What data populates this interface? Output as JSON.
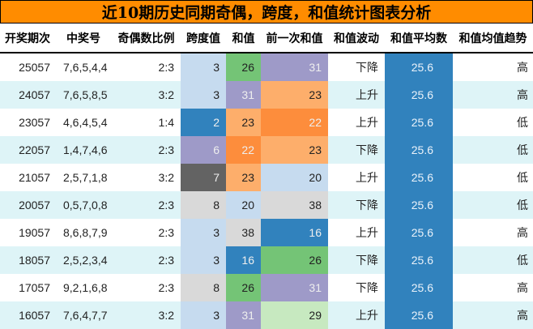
{
  "title": "近10期历史同期奇偶，跨度，和值统计图表分析",
  "colors": {
    "title_bg": "#ff8c00",
    "row_alt": "#def4f7",
    "avg_col": "#3182bd"
  },
  "headers": [
    "开奖期次",
    "中奖号",
    "奇偶数比例",
    "跨度值",
    "和值",
    "前一次和值",
    "和值波动",
    "和值平均数",
    "和值均值趋势"
  ],
  "rows": [
    {
      "period": "25057",
      "numbers": "7,6,5,4,4",
      "odd_even": "2:3",
      "span": "3",
      "sum": "26",
      "prev_sum": "31",
      "fluctuation": "下降",
      "avg": "25.6",
      "trend": "高",
      "span_color": "#c6dbef",
      "sum_color": "#74c476",
      "prev_color": "#9e9ac8"
    },
    {
      "period": "24057",
      "numbers": "7,6,5,8,5",
      "odd_even": "3:2",
      "span": "3",
      "sum": "31",
      "prev_sum": "23",
      "fluctuation": "上升",
      "avg": "25.6",
      "trend": "高",
      "span_color": "#c6dbef",
      "sum_color": "#9e9ac8",
      "prev_color": "#fdae6b"
    },
    {
      "period": "23057",
      "numbers": "4,6,4,5,4",
      "odd_even": "1:4",
      "span": "2",
      "sum": "23",
      "prev_sum": "22",
      "fluctuation": "上升",
      "avg": "25.6",
      "trend": "低",
      "span_color": "#3182bd",
      "sum_color": "#fdae6b",
      "prev_color": "#fd8d3c"
    },
    {
      "period": "22057",
      "numbers": "1,4,7,4,6",
      "odd_even": "2:3",
      "span": "6",
      "sum": "22",
      "prev_sum": "23",
      "fluctuation": "下降",
      "avg": "25.6",
      "trend": "低",
      "span_color": "#9e9ac8",
      "sum_color": "#fd8d3c",
      "prev_color": "#fdae6b"
    },
    {
      "period": "21057",
      "numbers": "2,5,7,1,8",
      "odd_even": "3:2",
      "span": "7",
      "sum": "23",
      "prev_sum": "20",
      "fluctuation": "上升",
      "avg": "25.6",
      "trend": "低",
      "span_color": "#636363",
      "sum_color": "#fdae6b",
      "prev_color": "#c6dbef"
    },
    {
      "period": "20057",
      "numbers": "0,5,7,0,8",
      "odd_even": "2:3",
      "span": "8",
      "sum": "20",
      "prev_sum": "38",
      "fluctuation": "下降",
      "avg": "25.6",
      "trend": "低",
      "span_color": "#d9d9d9",
      "sum_color": "#c6dbef",
      "prev_color": "#d9d9d9"
    },
    {
      "period": "19057",
      "numbers": "8,6,8,7,9",
      "odd_even": "2:3",
      "span": "3",
      "sum": "38",
      "prev_sum": "16",
      "fluctuation": "上升",
      "avg": "25.6",
      "trend": "高",
      "span_color": "#c6dbef",
      "sum_color": "#d9d9d9",
      "prev_color": "#3182bd"
    },
    {
      "period": "18057",
      "numbers": "2,5,2,3,4",
      "odd_even": "2:3",
      "span": "3",
      "sum": "16",
      "prev_sum": "26",
      "fluctuation": "下降",
      "avg": "25.6",
      "trend": "低",
      "span_color": "#c6dbef",
      "sum_color": "#3182bd",
      "prev_color": "#74c476"
    },
    {
      "period": "17057",
      "numbers": "9,2,1,6,8",
      "odd_even": "2:3",
      "span": "8",
      "sum": "26",
      "prev_sum": "31",
      "fluctuation": "下降",
      "avg": "25.6",
      "trend": "高",
      "span_color": "#d9d9d9",
      "sum_color": "#74c476",
      "prev_color": "#9e9ac8"
    },
    {
      "period": "16057",
      "numbers": "7,6,4,7,7",
      "odd_even": "3:2",
      "span": "3",
      "sum": "31",
      "prev_sum": "29",
      "fluctuation": "上升",
      "avg": "25.6",
      "trend": "高",
      "span_color": "#c6dbef",
      "sum_color": "#9e9ac8",
      "prev_color": "#c7e9c0"
    }
  ]
}
